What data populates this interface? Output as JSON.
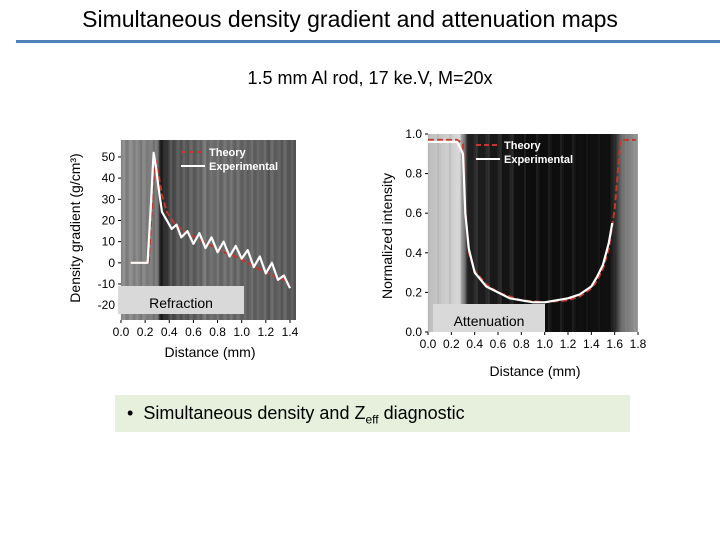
{
  "header": {
    "title": "Simultaneous density gradient and attenuation maps",
    "subtitle": "1.5 mm Al rod, 17 ke.V, M=20x"
  },
  "bullet": {
    "glyph": "•",
    "text_before": "Simultaneous density and  Z",
    "subscript": "eff",
    "text_after": " diagnostic"
  },
  "colors": {
    "accent_rule": "#4f81bd",
    "theory": "#c0392b",
    "experimental": "#ffffff",
    "bullet_bg": "#e6f0dc"
  },
  "chart_data": [
    {
      "type": "line",
      "xlabel": "Distance (mm)",
      "ylabel": "Density gradient (g/cm³)",
      "xlim": [
        0.0,
        1.45
      ],
      "ylim": [
        -27,
        58
      ],
      "xticks": [
        "0.0",
        "0.2",
        "0.4",
        "0.6",
        "0.8",
        "1.0",
        "1.2",
        "1.4"
      ],
      "yticks": [
        "50",
        "40",
        "30",
        "20",
        "10",
        "0",
        "-10",
        "-20"
      ],
      "legend": "top-right",
      "inset_label": "Refraction",
      "series": [
        {
          "name": "Theory",
          "style": "dashed",
          "x": [
            0.08,
            0.23,
            0.25,
            0.27,
            0.29,
            0.31,
            0.34,
            0.38,
            0.45,
            0.55,
            0.65,
            0.75,
            0.85,
            0.95,
            1.05,
            1.15,
            1.25,
            1.35,
            1.4
          ],
          "y": [
            0,
            0,
            20,
            40,
            48,
            42,
            32,
            24,
            18,
            14,
            11,
            8,
            5,
            3,
            0,
            -3,
            -6,
            -8,
            -10
          ]
        },
        {
          "name": "Experimental",
          "style": "solid",
          "x": [
            0.08,
            0.22,
            0.25,
            0.27,
            0.29,
            0.31,
            0.34,
            0.38,
            0.42,
            0.46,
            0.5,
            0.55,
            0.6,
            0.65,
            0.7,
            0.75,
            0.8,
            0.85,
            0.9,
            0.95,
            1.0,
            1.05,
            1.1,
            1.15,
            1.2,
            1.25,
            1.3,
            1.35,
            1.4
          ],
          "y": [
            0,
            0,
            30,
            52,
            45,
            36,
            24,
            20,
            16,
            18,
            12,
            15,
            9,
            14,
            7,
            12,
            5,
            10,
            3,
            8,
            2,
            6,
            -2,
            3,
            -5,
            0,
            -8,
            -6,
            -12
          ]
        }
      ]
    },
    {
      "type": "line",
      "xlabel": "Distance (mm)",
      "ylabel": "Normalized intensity",
      "xlim": [
        0.0,
        1.8
      ],
      "ylim": [
        0.0,
        1.0
      ],
      "xticks": [
        "0.0",
        "0.2",
        "0.4",
        "0.6",
        "0.8",
        "1.0",
        "1.2",
        "1.4",
        "1.6",
        "1.8"
      ],
      "yticks": [
        "1.0",
        "0.8",
        "0.6",
        "0.4",
        "0.2",
        "0.0"
      ],
      "legend": "top-right",
      "inset_label": "Attenuation",
      "series": [
        {
          "name": "Theory",
          "style": "dashed",
          "x": [
            0.0,
            0.25,
            0.3,
            0.32,
            0.35,
            0.4,
            0.5,
            0.6,
            0.7,
            0.8,
            0.9,
            1.0,
            1.1,
            1.2,
            1.3,
            1.4,
            1.45,
            1.5,
            1.55,
            1.6,
            1.65,
            1.7,
            1.75,
            1.78
          ],
          "y": [
            0.97,
            0.97,
            0.95,
            0.62,
            0.4,
            0.31,
            0.24,
            0.2,
            0.18,
            0.16,
            0.155,
            0.15,
            0.155,
            0.16,
            0.18,
            0.22,
            0.26,
            0.32,
            0.42,
            0.62,
            0.97,
            0.97,
            0.97,
            0.97
          ]
        },
        {
          "name": "Experimental",
          "style": "solid",
          "x": [
            0.0,
            0.25,
            0.3,
            0.32,
            0.35,
            0.4,
            0.5,
            0.6,
            0.7,
            0.8,
            0.9,
            1.0,
            1.1,
            1.2,
            1.3,
            1.4,
            1.45,
            1.5,
            1.55,
            1.58
          ],
          "y": [
            0.96,
            0.96,
            0.9,
            0.6,
            0.42,
            0.3,
            0.23,
            0.2,
            0.17,
            0.16,
            0.15,
            0.15,
            0.16,
            0.17,
            0.19,
            0.23,
            0.28,
            0.34,
            0.45,
            0.55
          ]
        }
      ]
    }
  ]
}
